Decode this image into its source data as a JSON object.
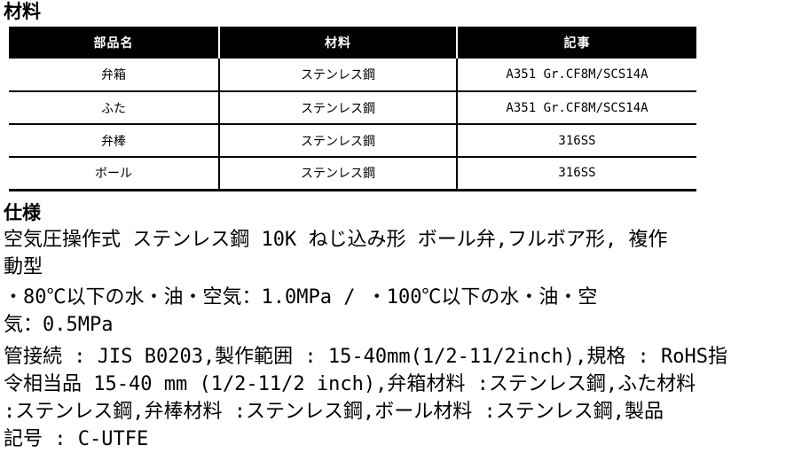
{
  "headings": {
    "materials": "材料",
    "specs": "仕様"
  },
  "materials_table": {
    "columns": [
      "部品名",
      "材料",
      "記事"
    ],
    "rows": [
      {
        "part": "弁箱",
        "material": "ステンレス鋼",
        "note": "A351 Gr.CF8M/SCS14A"
      },
      {
        "part": "ふた",
        "material": "ステンレス鋼",
        "note": "A351 Gr.CF8M/SCS14A"
      },
      {
        "part": "弁棒",
        "material": "ステンレス鋼",
        "note": "316SS"
      },
      {
        "part": "ボール",
        "material": "ステンレス鋼",
        "note": "316SS"
      }
    ]
  },
  "specs": {
    "lines": [
      "空気圧操作式 ステンレス鋼 10K ねじ込み形 ボール弁,フルボア形, 複作",
      "動型",
      "・80℃以下の水・油・空気：1.0MPa / ・100℃以下の水・油・空",
      "気：0.5MPa",
      "管接続 : JIS B0203,製作範囲 : 15-40mm(1/2-11/2inch),規格 : RoHS指",
      "令相当品 15-40 mm (1/2-11/2 inch),弁箱材料 :ステンレス鋼,ふた材料",
      ":ステンレス鋼,弁棒材料 :ステンレス鋼,ボール材料 :ステンレス鋼,製品",
      "記号 : C-UTFE"
    ]
  },
  "colors": {
    "table_header_bg": "#000000",
    "table_header_text": "#ffffff",
    "body_text": "#000000",
    "background": "#ffffff"
  }
}
